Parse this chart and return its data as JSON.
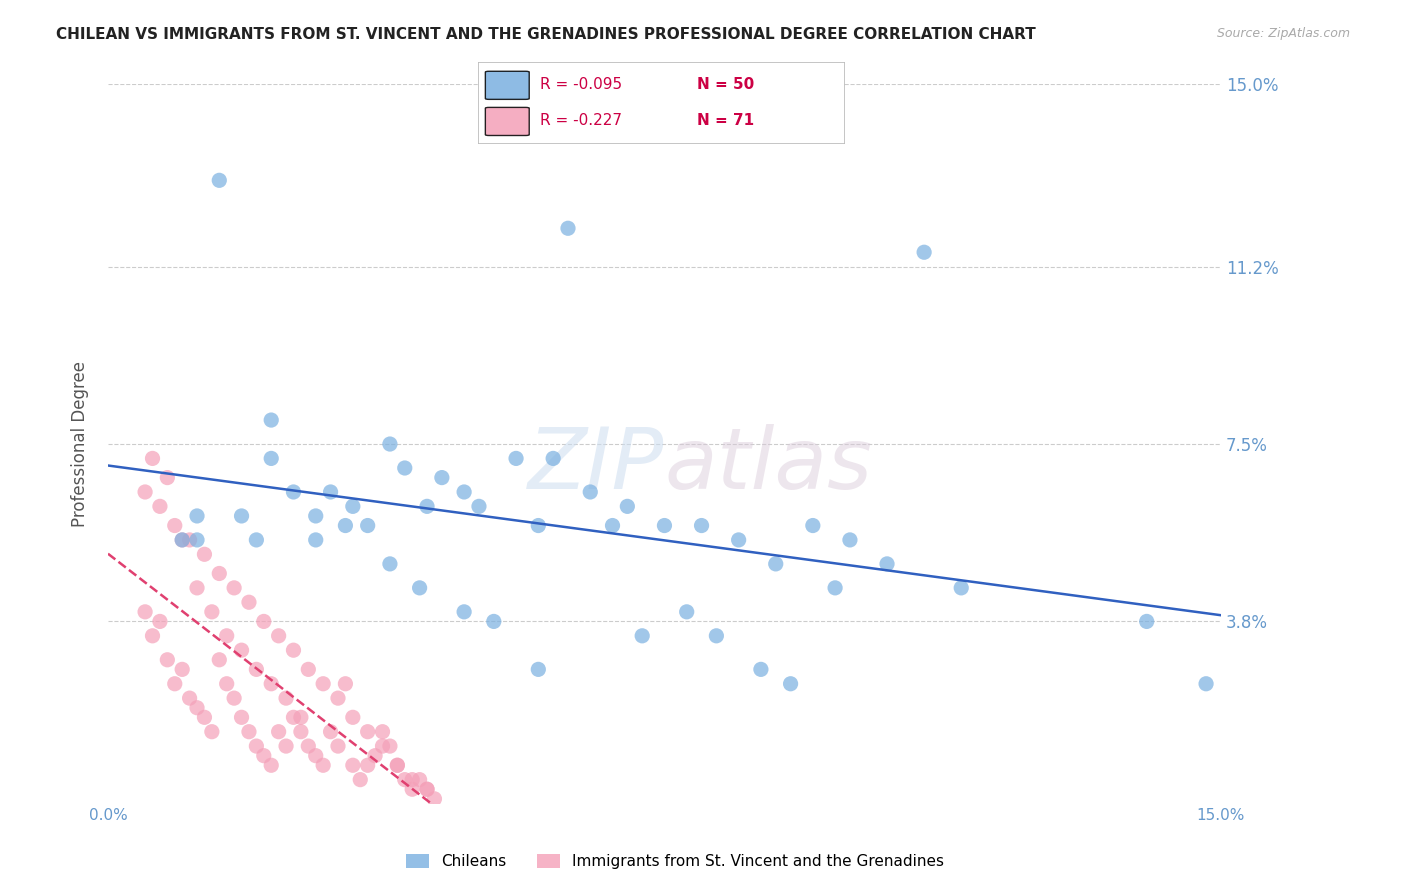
{
  "title": "CHILEAN VS IMMIGRANTS FROM ST. VINCENT AND THE GRENADINES PROFESSIONAL DEGREE CORRELATION CHART",
  "source": "Source: ZipAtlas.com",
  "ylabel": "Professional Degree",
  "x_min": 0.0,
  "x_max": 0.15,
  "y_min": 0.0,
  "y_max": 0.15,
  "y_tick_labels_right": [
    "15.0%",
    "11.2%",
    "7.5%",
    "3.8%"
  ],
  "y_ticks_right": [
    0.15,
    0.112,
    0.075,
    0.038
  ],
  "grid_color": "#cccccc",
  "background_color": "#ffffff",
  "chilean_color": "#7ab0e0",
  "immigrant_color": "#f4a0b8",
  "chilean_R": -0.095,
  "chilean_N": 50,
  "immigrant_R": -0.227,
  "immigrant_N": 71,
  "chilean_line_color": "#3060c0",
  "immigrant_line_color": "#e04070",
  "legend_label_chilean": "Chileans",
  "legend_label_immigrant": "Immigrants from St. Vincent and the Grenadines",
  "watermark_zip": "ZIP",
  "watermark_atlas": "atlas",
  "chilean_scatter_x": [
    0.01,
    0.012,
    0.015,
    0.02,
    0.022,
    0.025,
    0.028,
    0.03,
    0.033,
    0.035,
    0.038,
    0.04,
    0.043,
    0.045,
    0.048,
    0.05,
    0.055,
    0.058,
    0.06,
    0.065,
    0.07,
    0.075,
    0.08,
    0.085,
    0.09,
    0.095,
    0.1,
    0.105,
    0.11,
    0.115,
    0.012,
    0.018,
    0.022,
    0.028,
    0.032,
    0.038,
    0.042,
    0.048,
    0.052,
    0.058,
    0.062,
    0.068,
    0.072,
    0.078,
    0.082,
    0.088,
    0.092,
    0.098,
    0.14,
    0.148
  ],
  "chilean_scatter_y": [
    0.055,
    0.06,
    0.13,
    0.055,
    0.08,
    0.065,
    0.06,
    0.065,
    0.062,
    0.058,
    0.075,
    0.07,
    0.062,
    0.068,
    0.065,
    0.062,
    0.072,
    0.058,
    0.072,
    0.065,
    0.062,
    0.058,
    0.058,
    0.055,
    0.05,
    0.058,
    0.055,
    0.05,
    0.115,
    0.045,
    0.055,
    0.06,
    0.072,
    0.055,
    0.058,
    0.05,
    0.045,
    0.04,
    0.038,
    0.028,
    0.12,
    0.058,
    0.035,
    0.04,
    0.035,
    0.028,
    0.025,
    0.045,
    0.038,
    0.025
  ],
  "immigrant_scatter_x": [
    0.005,
    0.006,
    0.007,
    0.008,
    0.009,
    0.01,
    0.011,
    0.012,
    0.013,
    0.014,
    0.015,
    0.016,
    0.017,
    0.018,
    0.019,
    0.02,
    0.021,
    0.022,
    0.023,
    0.024,
    0.025,
    0.026,
    0.027,
    0.028,
    0.029,
    0.03,
    0.031,
    0.032,
    0.033,
    0.034,
    0.035,
    0.036,
    0.037,
    0.038,
    0.039,
    0.04,
    0.041,
    0.042,
    0.043,
    0.044,
    0.005,
    0.007,
    0.009,
    0.011,
    0.013,
    0.015,
    0.017,
    0.019,
    0.021,
    0.023,
    0.025,
    0.027,
    0.029,
    0.031,
    0.033,
    0.035,
    0.037,
    0.039,
    0.041,
    0.043,
    0.006,
    0.008,
    0.01,
    0.012,
    0.014,
    0.016,
    0.018,
    0.02,
    0.022,
    0.024,
    0.026
  ],
  "immigrant_scatter_y": [
    0.04,
    0.035,
    0.038,
    0.03,
    0.025,
    0.028,
    0.022,
    0.02,
    0.018,
    0.015,
    0.03,
    0.025,
    0.022,
    0.018,
    0.015,
    0.012,
    0.01,
    0.008,
    0.015,
    0.012,
    0.018,
    0.015,
    0.012,
    0.01,
    0.008,
    0.015,
    0.012,
    0.025,
    0.008,
    0.005,
    0.008,
    0.01,
    0.015,
    0.012,
    0.008,
    0.005,
    0.003,
    0.005,
    0.003,
    0.001,
    0.065,
    0.062,
    0.058,
    0.055,
    0.052,
    0.048,
    0.045,
    0.042,
    0.038,
    0.035,
    0.032,
    0.028,
    0.025,
    0.022,
    0.018,
    0.015,
    0.012,
    0.008,
    0.005,
    0.003,
    0.072,
    0.068,
    0.055,
    0.045,
    0.04,
    0.035,
    0.032,
    0.028,
    0.025,
    0.022,
    0.018
  ]
}
